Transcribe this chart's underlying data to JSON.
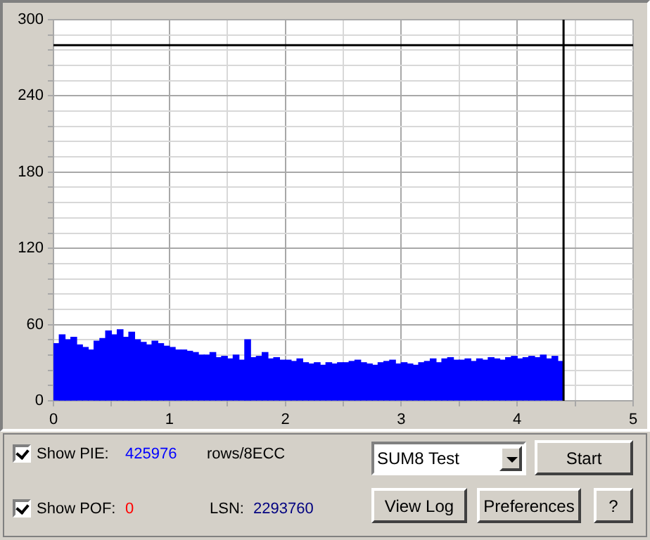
{
  "chart_data": {
    "type": "histogram",
    "bins": [
      0,
      0.05,
      0.1,
      0.15,
      0.2,
      0.25,
      0.3,
      0.35,
      0.4,
      0.45,
      0.5,
      0.55,
      0.6,
      0.65,
      0.7,
      0.75,
      0.8,
      0.85,
      0.9,
      0.95,
      1,
      1.05,
      1.1,
      1.15,
      1.2,
      1.25,
      1.3,
      1.35,
      1.4,
      1.45,
      1.5,
      1.55,
      1.6,
      1.65,
      1.7,
      1.75,
      1.8,
      1.85,
      1.9,
      1.95,
      2,
      2.05,
      2.1,
      2.15,
      2.2,
      2.25,
      2.3,
      2.35,
      2.4,
      2.45,
      2.5,
      2.55,
      2.6,
      2.65,
      2.7,
      2.75,
      2.8,
      2.85,
      2.9,
      2.95,
      3,
      3.05,
      3.1,
      3.15,
      3.2,
      3.25,
      3.3,
      3.35,
      3.4,
      3.45,
      3.5,
      3.55,
      3.6,
      3.65,
      3.7,
      3.75,
      3.8,
      3.85,
      3.9,
      3.95,
      4,
      4.05,
      4.1,
      4.15,
      4.2,
      4.25,
      4.3,
      4.35,
      4.4
    ],
    "values": [
      45,
      52,
      48,
      50,
      44,
      42,
      40,
      47,
      49,
      55,
      52,
      56,
      50,
      54,
      48,
      46,
      44,
      47,
      45,
      43,
      42,
      40,
      40,
      39,
      38,
      36,
      36,
      38,
      34,
      35,
      33,
      36,
      32,
      48,
      34,
      35,
      38,
      33,
      34,
      32,
      32,
      31,
      33,
      30,
      29,
      30,
      28,
      30,
      29,
      30,
      30,
      31,
      32,
      30,
      29,
      28,
      30,
      31,
      32,
      29,
      30,
      29,
      28,
      30,
      31,
      33,
      30,
      33,
      34,
      32,
      32,
      33,
      31,
      33,
      32,
      34,
      33,
      32,
      34,
      35,
      33,
      34,
      35,
      34,
      36,
      33,
      35,
      31
    ],
    "color": "#0000ff",
    "xlim": [
      0,
      5
    ],
    "xticks": [
      0,
      {
        "value": 0.5,
        "label": null
      },
      1,
      {
        "value": 1.5,
        "label": null
      },
      2,
      {
        "value": 2.5,
        "label": null
      },
      3,
      {
        "value": 3.5,
        "label": null
      },
      4,
      {
        "value": 4.5,
        "label": null
      },
      5
    ],
    "ylim": [
      0,
      300
    ],
    "yticks": [
      0,
      {
        "value": 12,
        "label": null
      },
      {
        "value": 24,
        "label": null
      },
      {
        "value": 36,
        "label": null
      },
      {
        "value": 48,
        "label": null
      },
      60,
      {
        "value": 72,
        "label": null
      },
      {
        "value": 84,
        "label": null
      },
      {
        "value": 96,
        "label": null
      },
      {
        "value": 108,
        "label": null
      },
      120,
      {
        "value": 132,
        "label": null
      },
      {
        "value": 144,
        "label": null
      },
      {
        "value": 156,
        "label": null
      },
      {
        "value": 168,
        "label": null
      },
      180,
      {
        "value": 192,
        "label": null
      },
      {
        "value": 204,
        "label": null
      },
      {
        "value": 216,
        "label": null
      },
      {
        "value": 228,
        "label": null
      },
      240,
      {
        "value": 252,
        "label": null
      },
      {
        "value": 264,
        "label": null
      },
      {
        "value": 276,
        "label": null
      },
      {
        "value": 288,
        "label": null
      },
      300
    ],
    "grid": true,
    "legend": false,
    "ref_lines": [
      {
        "axis": "y",
        "value": 280,
        "color": "#000000"
      },
      {
        "axis": "x",
        "value": 4.4,
        "color": "#000000"
      }
    ],
    "annotations": [
      "Show PIE:",
      "425976",
      "rows/8ECC",
      "Show POF:",
      "0",
      "LSN:",
      "2293760",
      "SUM8 Test",
      "Start",
      "View Log",
      "Preferences",
      "?"
    ]
  }
}
